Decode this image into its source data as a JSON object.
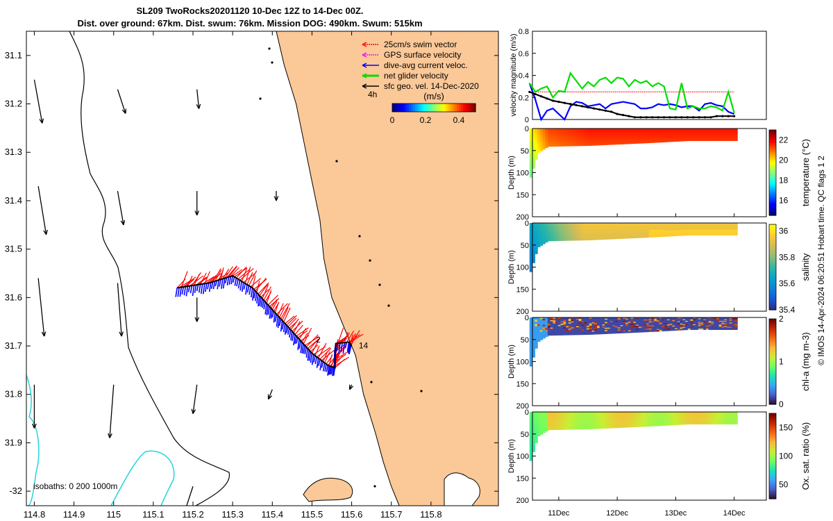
{
  "header": {
    "title": "SL209 TwoRocks20201120 10-Dec 12Z to 14-Dec 00Z.",
    "subtitle": "Dist. over ground: 67km. Dist. swum: 76km. Mission DOG: 490km. Swum: 515km"
  },
  "footer_note": "© IMOS 14-Apr-2024 06:20:51 Hobart time. QC flags 1  2",
  "colors": {
    "land": "#fbc898",
    "swim": "#ff0000",
    "gps": "#ff00ff",
    "dive": "#0000ff",
    "net": "#00dd00",
    "sfc": "#000000",
    "isobath": "#22d5dc"
  },
  "chart_data": [
    {
      "type": "map",
      "title": "Glider track map",
      "xlabel": "",
      "ylabel": "",
      "xlim": [
        114.78,
        115.97
      ],
      "ylim": [
        -32.03,
        -31.05
      ],
      "x_ticks": [
        114.8,
        114.9,
        115,
        115.1,
        115.2,
        115.3,
        115.4,
        115.5,
        115.6,
        115.7,
        115.8
      ],
      "x_tick_labels": [
        "114.8",
        "114.9",
        "115",
        "115.1",
        "115.2",
        "115.3",
        "115.4",
        "115.5",
        "115.6",
        "115.7",
        "115.8"
      ],
      "y_ticks": [
        -31.1,
        -31.2,
        -31.3,
        -31.4,
        -31.5,
        -31.6,
        -31.7,
        -31.8,
        -31.9,
        -32
      ],
      "y_tick_labels": [
        "31.1",
        "31.2",
        "31.3",
        "31.4",
        "31.5",
        "31.6",
        "31.7",
        "31.8",
        "31.9",
        "-32"
      ],
      "legend": [
        {
          "label": "25cm/s swim vector",
          "color": "#ff0000"
        },
        {
          "label": "GPS surface velocity",
          "color": "#ff00ff"
        },
        {
          "label": "dive-avg current veloc.",
          "color": "#0000ff"
        },
        {
          "label": "net glider velocity",
          "color": "#00dd00"
        },
        {
          "label": "sfc geo. vel. 14-Dec-2020",
          "color": "#000000"
        }
      ],
      "legend_position": "top-right",
      "interval_label": "4h",
      "colorbar": {
        "label": "(m/s)",
        "range": [
          0,
          0.5
        ],
        "ticks": [
          0,
          0.2,
          0.4
        ],
        "tick_labels": [
          "0",
          "0.2",
          "0.4"
        ]
      },
      "isobath_note": "isobaths: 0   200  1000m",
      "coast": [
        [
          115.41,
          -31.05
        ],
        [
          115.43,
          -31.12
        ],
        [
          115.46,
          -31.2
        ],
        [
          115.48,
          -31.28
        ],
        [
          115.5,
          -31.36
        ],
        [
          115.52,
          -31.44
        ],
        [
          115.53,
          -31.52
        ],
        [
          115.55,
          -31.6
        ],
        [
          115.58,
          -31.66
        ],
        [
          115.61,
          -31.72
        ],
        [
          115.63,
          -31.8
        ],
        [
          115.66,
          -31.88
        ],
        [
          115.68,
          -31.94
        ],
        [
          115.7,
          -31.99
        ],
        [
          115.72,
          -32.03
        ]
      ],
      "track": [
        [
          115.16,
          -31.58
        ],
        [
          115.24,
          -31.57
        ],
        [
          115.3,
          -31.555
        ],
        [
          115.35,
          -31.58
        ],
        [
          115.4,
          -31.625
        ],
        [
          115.45,
          -31.67
        ],
        [
          115.5,
          -31.715
        ],
        [
          115.54,
          -31.74
        ],
        [
          115.558,
          -31.745
        ],
        [
          115.56,
          -31.695
        ],
        [
          115.593,
          -31.692
        ],
        [
          115.6,
          -31.7
        ]
      ],
      "track_labels": [
        {
          "text": "2",
          "lon": 115.51,
          "lat": -31.693
        },
        {
          "text": "14",
          "lon": 115.618,
          "lat": -31.705
        }
      ],
      "sfc_vectors": [
        {
          "lon": 114.8,
          "lat": -31.15,
          "dlon": 0.02,
          "dlat": -0.09
        },
        {
          "lon": 115.01,
          "lat": -31.17,
          "dlon": 0.02,
          "dlat": -0.05
        },
        {
          "lon": 115.21,
          "lat": -31.17,
          "dlon": 0.005,
          "dlat": -0.04
        },
        {
          "lon": 114.81,
          "lat": -31.37,
          "dlon": 0.02,
          "dlat": -0.1
        },
        {
          "lon": 115.01,
          "lat": -31.38,
          "dlon": 0.015,
          "dlat": -0.07
        },
        {
          "lon": 115.21,
          "lat": -31.38,
          "dlon": 0,
          "dlat": -0.05
        },
        {
          "lon": 115.41,
          "lat": -31.38,
          "dlon": 0,
          "dlat": -0.02
        },
        {
          "lon": 114.81,
          "lat": -31.56,
          "dlon": 0.015,
          "dlat": -0.12
        },
        {
          "lon": 115.01,
          "lat": -31.57,
          "dlon": 0.01,
          "dlat": -0.11
        },
        {
          "lon": 115.21,
          "lat": -31.6,
          "dlon": 0,
          "dlat": -0.05
        },
        {
          "lon": 114.8,
          "lat": -31.78,
          "dlon": 0,
          "dlat": -0.09
        },
        {
          "lon": 115.0,
          "lat": -31.78,
          "dlon": -0.01,
          "dlat": -0.11
        },
        {
          "lon": 115.21,
          "lat": -31.78,
          "dlon": -0.01,
          "dlat": -0.06
        },
        {
          "lon": 115.4,
          "lat": -31.79,
          "dlon": -0.01,
          "dlat": -0.02
        },
        {
          "lon": 115.6,
          "lat": -31.78,
          "dlon": -0.005,
          "dlat": -0.01
        },
        {
          "lon": 115.2,
          "lat": -31.99,
          "dlon": -0.02,
          "dlat": -0.05
        }
      ]
    },
    {
      "type": "line",
      "title": "",
      "ylabel": "velocity magnitude (m/s)",
      "ylim": [
        0,
        0.8
      ],
      "y_ticks": [
        0,
        0.2,
        0.4,
        0.6,
        0.8
      ],
      "y_tick_labels": [
        "0",
        "0.2",
        "0.4",
        "0.6",
        "0.8"
      ],
      "x": [
        0,
        0.1,
        0.2,
        0.3,
        0.4,
        0.5,
        0.6,
        0.7,
        0.8,
        0.9,
        1,
        1.1,
        1.2,
        1.3,
        1.4,
        1.5,
        1.6,
        1.7,
        1.8,
        1.9,
        2,
        2.1,
        2.2,
        2.3,
        2.4,
        2.5,
        2.6,
        2.7,
        2.8,
        2.9,
        3,
        3.1,
        3.2,
        3.3,
        3.4,
        3.5
      ],
      "series": [
        {
          "name": "swim",
          "color": "#ff0000",
          "values": [
            0.25,
            0.25,
            0.25,
            0.25,
            0.25,
            0.25,
            0.25,
            0.25,
            0.25,
            0.25,
            0.25,
            0.25,
            0.25,
            0.25,
            0.25,
            0.25,
            0.25,
            0.25,
            0.25,
            0.25,
            0.25,
            0.25,
            0.25,
            0.25,
            0.25,
            0.25,
            0.25,
            0.25,
            0.25,
            0.25,
            0.25,
            0.25,
            0.25,
            0.25,
            0.25,
            0.25
          ]
        },
        {
          "name": "dive-avg",
          "color": "#0000ff",
          "values": [
            0.33,
            0.18,
            0.0,
            0.08,
            0.1,
            0.05,
            0.0,
            0.12,
            0.16,
            0.15,
            0.12,
            0.13,
            0.14,
            0.1,
            0.14,
            0.15,
            0.16,
            0.15,
            0.14,
            0.1,
            0.1,
            0.11,
            0.14,
            0.13,
            0.14,
            0.13,
            0.11,
            0.12,
            0.12,
            0.08,
            0.14,
            0.15,
            0.13,
            0.12,
            0.07,
            0.05
          ]
        },
        {
          "name": "net",
          "color": "#00dd00",
          "values": [
            0.33,
            0.25,
            0.28,
            0.3,
            0.2,
            0.26,
            0.25,
            0.42,
            0.35,
            0.28,
            0.34,
            0.3,
            0.36,
            0.38,
            0.33,
            0.38,
            0.37,
            0.3,
            0.36,
            0.33,
            0.35,
            0.3,
            0.33,
            0.3,
            0.1,
            0.09,
            0.33,
            0.1,
            0.12,
            0.1,
            0.1,
            0.12,
            0.11,
            0.08,
            0.25,
            0.06
          ]
        },
        {
          "name": "sfc geo",
          "color": "#000000",
          "values": [
            0.25,
            0.23,
            0.21,
            0.19,
            0.17,
            0.16,
            0.15,
            0.14,
            0.13,
            0.12,
            0.11,
            0.1,
            0.09,
            0.08,
            0.07,
            0.05,
            0.04,
            0.03,
            0.02,
            0.02,
            0.02,
            0.02,
            0.02,
            0.02,
            0.02,
            0.02,
            0.02,
            0.02,
            0.02,
            0.02,
            0.02,
            0.02,
            0.03,
            0.03,
            0.03,
            0.03
          ]
        }
      ]
    },
    {
      "type": "heatmap",
      "title": "",
      "variable": "temperature",
      "ylabel": "Depth (m)",
      "ylim": [
        200,
        0
      ],
      "y_ticks": [
        0,
        50,
        100,
        150,
        200
      ],
      "x_ticks": [
        "11Dec",
        "12Dec",
        "13Dec",
        "14Dec"
      ],
      "colorbar_label": "temperature (°C)",
      "clim": [
        14.5,
        23
      ],
      "colorbar_ticks": [
        16,
        18,
        20,
        22
      ],
      "colorbar_tick_labels": [
        "16",
        "18",
        "20",
        "22"
      ],
      "max_depth_profile": [
        {
          "day": 10.5,
          "depth": 110
        },
        {
          "day": 10.62,
          "depth": 55
        },
        {
          "day": 10.8,
          "depth": 40
        },
        {
          "day": 11.5,
          "depth": 38
        },
        {
          "day": 12.5,
          "depth": 32
        },
        {
          "day": 13.2,
          "depth": 27
        },
        {
          "day": 14.0,
          "depth": 27
        }
      ],
      "summary": "Upper ~40 m warm (~21.5-22 °C), slightly cooler at depth nearshore (~20-20.5 °C)"
    },
    {
      "type": "heatmap",
      "title": "",
      "variable": "salinity",
      "ylabel": "Depth (m)",
      "ylim": [
        200,
        0
      ],
      "y_ticks": [
        0,
        50,
        100,
        150,
        200
      ],
      "x_ticks": [
        "11Dec",
        "12Dec",
        "13Dec",
        "14Dec"
      ],
      "colorbar_label": "salinity",
      "clim": [
        35.4,
        36.05
      ],
      "colorbar_ticks": [
        35.4,
        35.6,
        35.8,
        36
      ],
      "colorbar_tick_labels": [
        "35.4",
        "35.6",
        "35.8",
        "36"
      ],
      "summary": "Fresher (~35.6-35.7) on 10-11 Dec, increasing to ~35.9-36.0 later"
    },
    {
      "type": "heatmap",
      "title": "",
      "variable": "chl-a",
      "ylabel": "Depth (m)",
      "ylim": [
        200,
        0
      ],
      "y_ticks": [
        0,
        50,
        100,
        150,
        200
      ],
      "x_ticks": [
        "11Dec",
        "12Dec",
        "13Dec",
        "14Dec"
      ],
      "colorbar_label": "chl-a (mg m-3)",
      "clim": [
        0,
        2
      ],
      "colorbar_ticks": [
        0,
        1,
        2
      ],
      "colorbar_tick_labels": [
        "0",
        "1",
        "2"
      ],
      "summary": "Mostly low (~0.1-0.3), patchy high values (~1.5-2) in upper 30 m"
    },
    {
      "type": "heatmap",
      "title": "",
      "variable": "oxygen saturation",
      "ylabel": "Depth (m)",
      "ylim": [
        200,
        0
      ],
      "y_ticks": [
        0,
        50,
        100,
        150,
        200
      ],
      "x_ticks": [
        "11Dec",
        "12Dec",
        "13Dec",
        "14Dec"
      ],
      "colorbar_label": "Ox. sat. ratio (%)",
      "clim": [
        25,
        175
      ],
      "colorbar_ticks": [
        50,
        100,
        150
      ],
      "colorbar_tick_labels": [
        "50",
        "100",
        "150"
      ],
      "summary": "Roughly 100-120 % throughout"
    }
  ]
}
